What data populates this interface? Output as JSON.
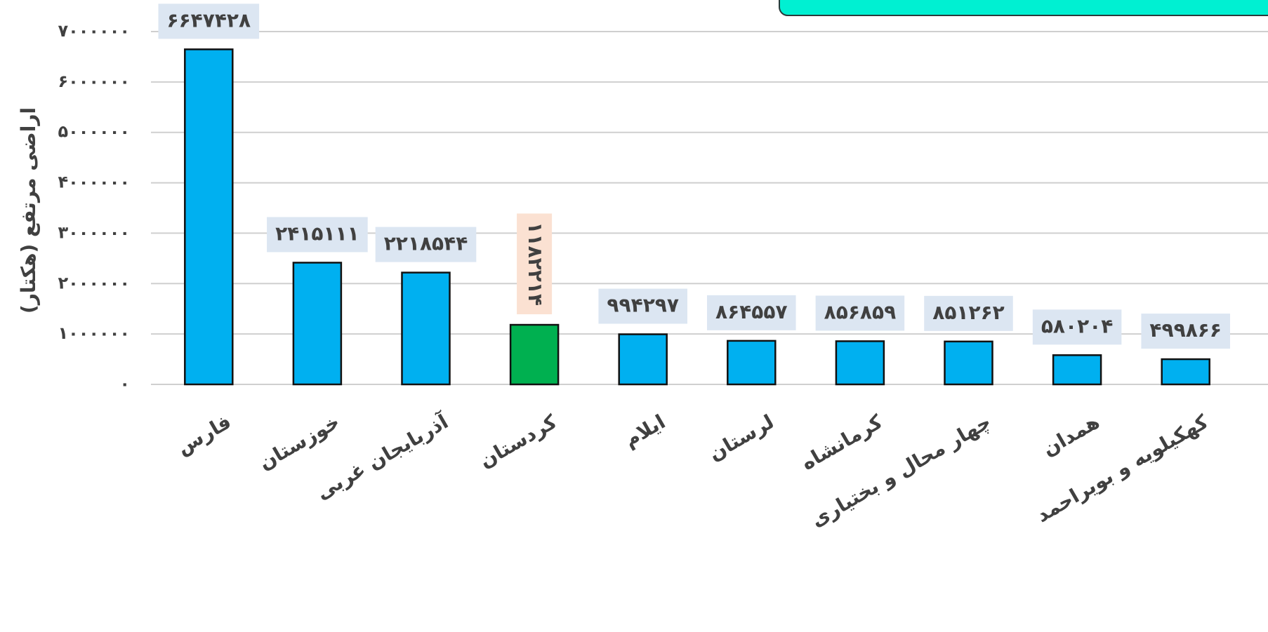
{
  "chart_data": {
    "type": "bar",
    "y_axis_label": "اراضی مرتفع (هکتار)",
    "categories": [
      "فارس",
      "خوزستان",
      "آذربایجان غربی",
      "کردستان",
      "ایلام",
      "لرستان",
      "کرمانشاه",
      "چهار محال و بختیاری",
      "همدان",
      "کهکیلویه و بویراحمد"
    ],
    "values": [
      6647428,
      2415111,
      2218544,
      1182214,
      994297,
      864557,
      856859,
      851262,
      580204,
      499866
    ],
    "value_labels": [
      "۶۶۴۷۴۲۸",
      "۲۴۱۵۱۱۱",
      "۲۲۱۸۵۴۴",
      "۱۱۸۲۲۱۴",
      "۹۹۴۲۹۷",
      "۸۶۴۵۵۷",
      "۸۵۶۸۵۹",
      "۸۵۱۲۶۲",
      "۵۸۰۲۰۴",
      "۴۹۹۸۶۶"
    ],
    "colors": [
      "#00b0f0",
      "#00b0f0",
      "#00b0f0",
      "#00b050",
      "#00b0f0",
      "#00b0f0",
      "#00b0f0",
      "#00b0f0",
      "#00b0f0",
      "#00b0f0"
    ],
    "label_backgrounds": [
      "#dce6f2",
      "#dce6f2",
      "#dce6f2",
      "#fbe1d2",
      "#dce6f2",
      "#dce6f2",
      "#dce6f2",
      "#dce6f2",
      "#dce6f2",
      "#dce6f2"
    ],
    "ylim": [
      0,
      7000000
    ],
    "yticks": [
      {
        "value": 0,
        "label": "۰"
      },
      {
        "value": 1000000,
        "label": "۱۰۰۰۰۰۰"
      },
      {
        "value": 2000000,
        "label": "۲۰۰۰۰۰۰"
      },
      {
        "value": 3000000,
        "label": "۳۰۰۰۰۰۰"
      },
      {
        "value": 4000000,
        "label": "۴۰۰۰۰۰۰"
      },
      {
        "value": 5000000,
        "label": "۵۰۰۰۰۰۰"
      },
      {
        "value": 6000000,
        "label": "۶۰۰۰۰۰۰"
      },
      {
        "value": 7000000,
        "label": "۷۰۰۰۰۰۰"
      }
    ],
    "grid": true
  }
}
